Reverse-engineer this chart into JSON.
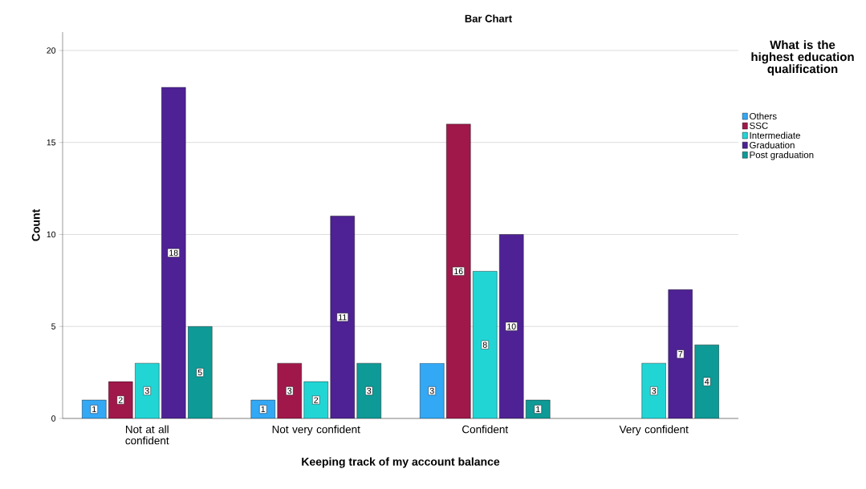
{
  "chart_data": {
    "type": "bar",
    "title": "Bar Chart",
    "xlabel": "Keeping track of my account balance",
    "ylabel": "Count",
    "legend_title": "What is the highest education qualification",
    "categories": [
      "Not at all confident",
      "Not very confident",
      "Confident",
      "Very confident"
    ],
    "series": [
      {
        "name": "Others",
        "color": "#33a8f5",
        "values": [
          1,
          1,
          3,
          null
        ]
      },
      {
        "name": "SSC",
        "color": "#a0184a",
        "values": [
          2,
          3,
          16,
          null
        ]
      },
      {
        "name": "Intermediate",
        "color": "#22d5d5",
        "values": [
          3,
          2,
          8,
          3
        ]
      },
      {
        "name": "Graduation",
        "color": "#4e2294",
        "values": [
          18,
          11,
          10,
          7
        ]
      },
      {
        "name": "Post graduation",
        "color": "#0e9a96",
        "values": [
          5,
          3,
          1,
          4
        ]
      }
    ],
    "ylim": [
      0,
      21
    ],
    "yticks": [
      0,
      5,
      10,
      15,
      20
    ],
    "grid": "y",
    "legend": "right",
    "data_labels": true
  }
}
